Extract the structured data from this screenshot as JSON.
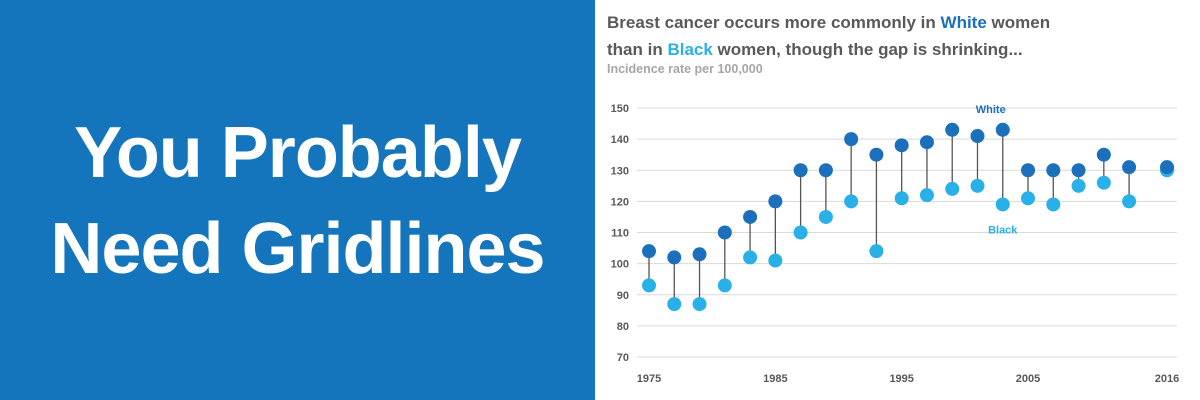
{
  "headline": {
    "line1": "You Probably",
    "line2": "Need Gridlines"
  },
  "colors": {
    "panel": "#1475bd",
    "white_series": "#1c6fba",
    "black_series": "#2ab0e8",
    "connector": "#555555",
    "grid": "#d9d9d9"
  },
  "chart_data": {
    "type": "dumbbell",
    "title_parts": [
      {
        "text": "Breast cancer occurs more commonly in ",
        "style": "plain"
      },
      {
        "text": "White",
        "style": "white"
      },
      {
        "text": " women",
        "style": "plain"
      },
      {
        "text": "than in ",
        "style": "plain",
        "break_before": true
      },
      {
        "text": "Black",
        "style": "black"
      },
      {
        "text": " women, though the gap is shrinking...",
        "style": "plain"
      }
    ],
    "subtitle": "Incidence rate per 100,000",
    "ylim": [
      70,
      150
    ],
    "yticks": [
      70,
      80,
      90,
      100,
      110,
      120,
      130,
      140,
      150
    ],
    "xlim": [
      1975,
      2016
    ],
    "xticks": [
      1975,
      1985,
      1995,
      2005,
      2016
    ],
    "grid": true,
    "x": [
      1975,
      1977,
      1979,
      1981,
      1983,
      1985,
      1987,
      1989,
      1991,
      1993,
      1995,
      1997,
      1999,
      2001,
      2003,
      2005,
      2007,
      2009,
      2011,
      2013,
      2016
    ],
    "series": [
      {
        "name": "White",
        "values": [
          104,
          102,
          103,
          110,
          115,
          120,
          130,
          130,
          140,
          135,
          138,
          139,
          143,
          141,
          143,
          130,
          130,
          130,
          135,
          131,
          131
        ]
      },
      {
        "name": "Black",
        "values": [
          93,
          87,
          87,
          93,
          102,
          101,
          110,
          115,
          120,
          104,
          121,
          122,
          124,
          125,
          119,
          121,
          119,
          125,
          126,
          120,
          130
        ]
      }
    ],
    "series_labels": {
      "white": "White",
      "black": "Black"
    }
  }
}
